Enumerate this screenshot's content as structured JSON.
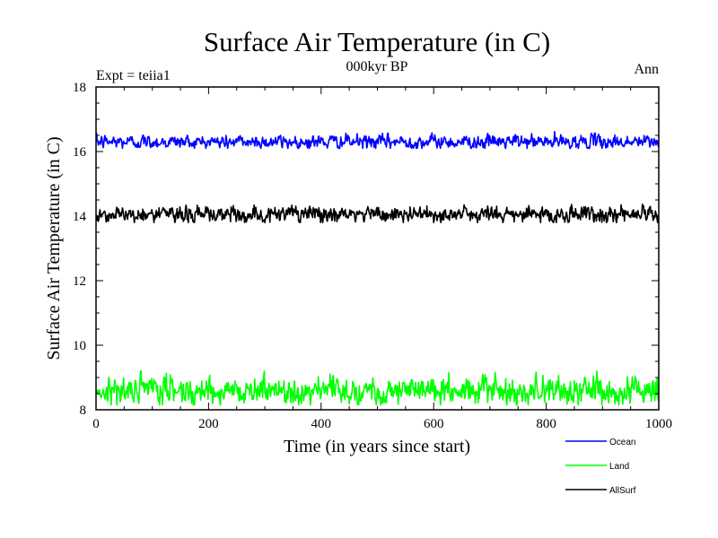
{
  "chart_data": {
    "type": "line",
    "title": "Surface Air Temperature (in C)",
    "subtitle": "000kyr BP",
    "left_note": "Expt = teiia1",
    "right_note": "Ann",
    "xlabel": "Time (in years since start)",
    "ylabel": "Surface Air Temperature (in C)",
    "xlim": [
      0,
      1000
    ],
    "ylim": [
      8,
      18
    ],
    "xticks": [
      0,
      200,
      400,
      600,
      800,
      1000
    ],
    "yticks": [
      8,
      10,
      12,
      14,
      16,
      18
    ],
    "grid": false,
    "legend_position": "bottom-right, below plot",
    "x_range": [
      1,
      1000
    ],
    "series": [
      {
        "name": "Ocean",
        "color": "#0000ff",
        "mean": 16.3,
        "spread": 0.1,
        "min": 16.1,
        "max": 16.68
      },
      {
        "name": "Land",
        "color": "#00ff00",
        "mean": 8.6,
        "spread": 0.2,
        "min": 8.15,
        "max": 9.2
      },
      {
        "name": "AllSurf",
        "color": "#000000",
        "mean": 14.05,
        "spread": 0.12,
        "min": 13.8,
        "max": 14.5
      }
    ]
  }
}
